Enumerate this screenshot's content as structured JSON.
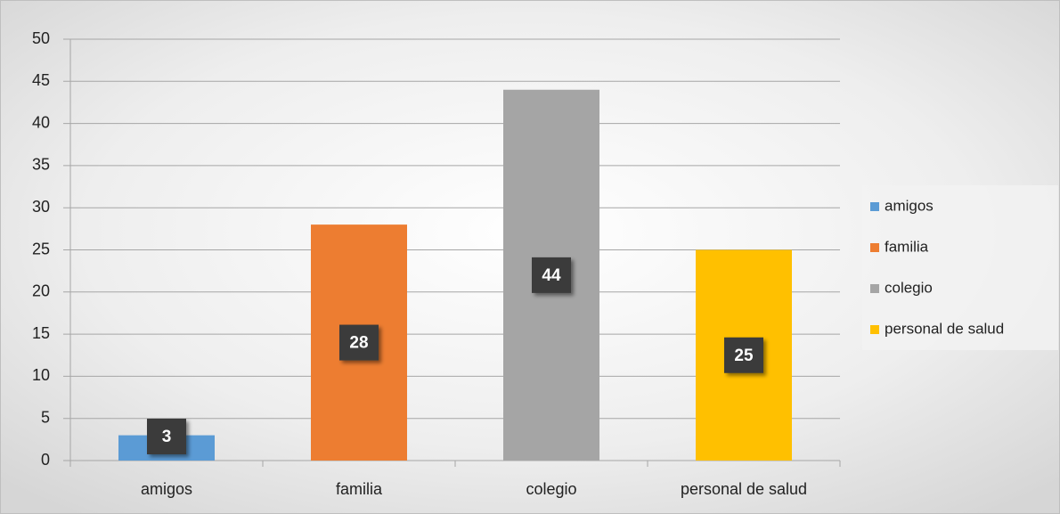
{
  "chart_data": {
    "type": "bar",
    "categories": [
      "amigos",
      "familia",
      "colegio",
      "personal de salud"
    ],
    "values": [
      3,
      28,
      44,
      25
    ],
    "colors": [
      "#5b9bd5",
      "#ed7d31",
      "#a5a5a5",
      "#ffc000"
    ],
    "ylim": [
      0,
      50
    ],
    "yticks": [
      0,
      5,
      10,
      15,
      20,
      25,
      30,
      35,
      40,
      45,
      50
    ],
    "grid": true,
    "legend": "right"
  }
}
